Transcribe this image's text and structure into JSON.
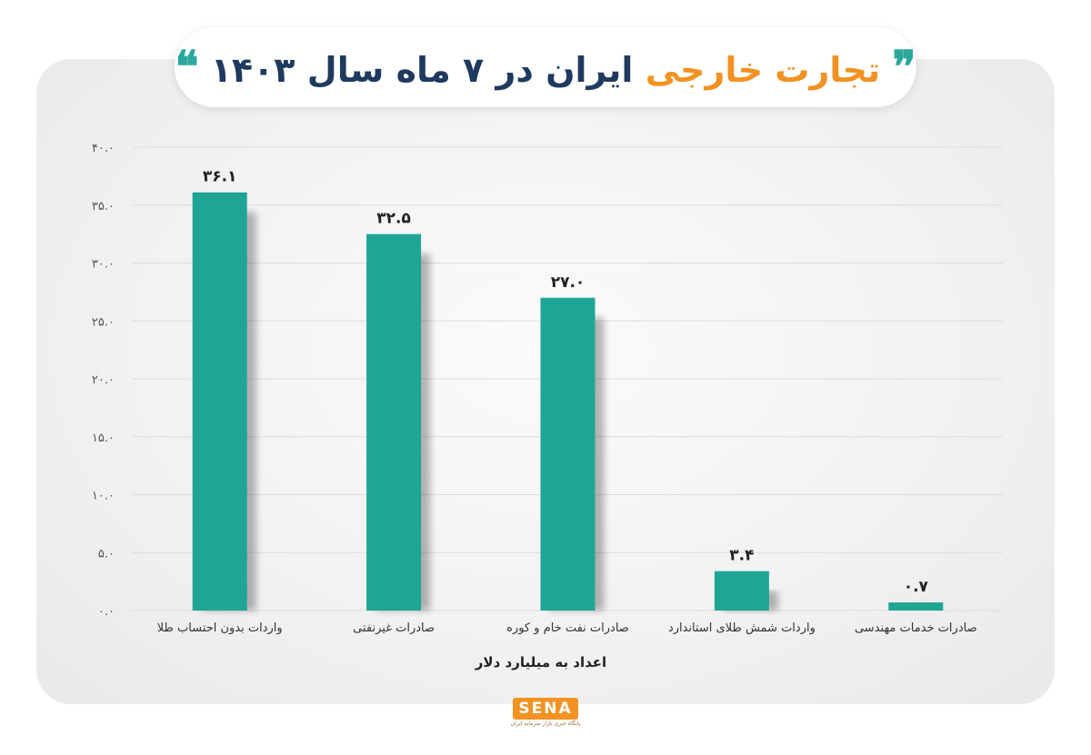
{
  "header": {
    "quote_open": "❞",
    "title_part1": "تجارت خارجی",
    "title_part2": "ایران در ۷ ماه سال ۱۴۰۳",
    "quote_close": "❝"
  },
  "chart_data": {
    "type": "bar",
    "title": "تجارت خارجی ایران در ۷ ماه سال ۱۴۰۳",
    "xlabel": "اعداد به میلیارد دلار",
    "ylabel": "",
    "ylim": [
      0,
      40
    ],
    "yticks": [
      0,
      5,
      10,
      15,
      20,
      25,
      30,
      35,
      40
    ],
    "ytick_labels": [
      "۰.۰",
      "۵.۰",
      "۱۰.۰",
      "۱۵.۰",
      "۲۰.۰",
      "۲۵.۰",
      "۳۰.۰",
      "۳۵.۰",
      "۴۰.۰"
    ],
    "grid": true,
    "categories": [
      "واردات بدون احتساب طلا",
      "صادرات غیرنفتی",
      "صادرات نفت خام و کوره",
      "واردات شمش طلای استاندارد",
      "صادرات خدمات مهندسی"
    ],
    "values": [
      36.1,
      32.5,
      27.0,
      3.4,
      0.7
    ],
    "value_labels": [
      "۳۶.۱",
      "۳۲.۵",
      "۲۷.۰",
      "۳.۴",
      "۰.۷"
    ],
    "bar_color": "#1fa596"
  },
  "logo": {
    "name": "SENA",
    "subtitle": "پایگاه خبری بازار سرمایه ایران"
  }
}
